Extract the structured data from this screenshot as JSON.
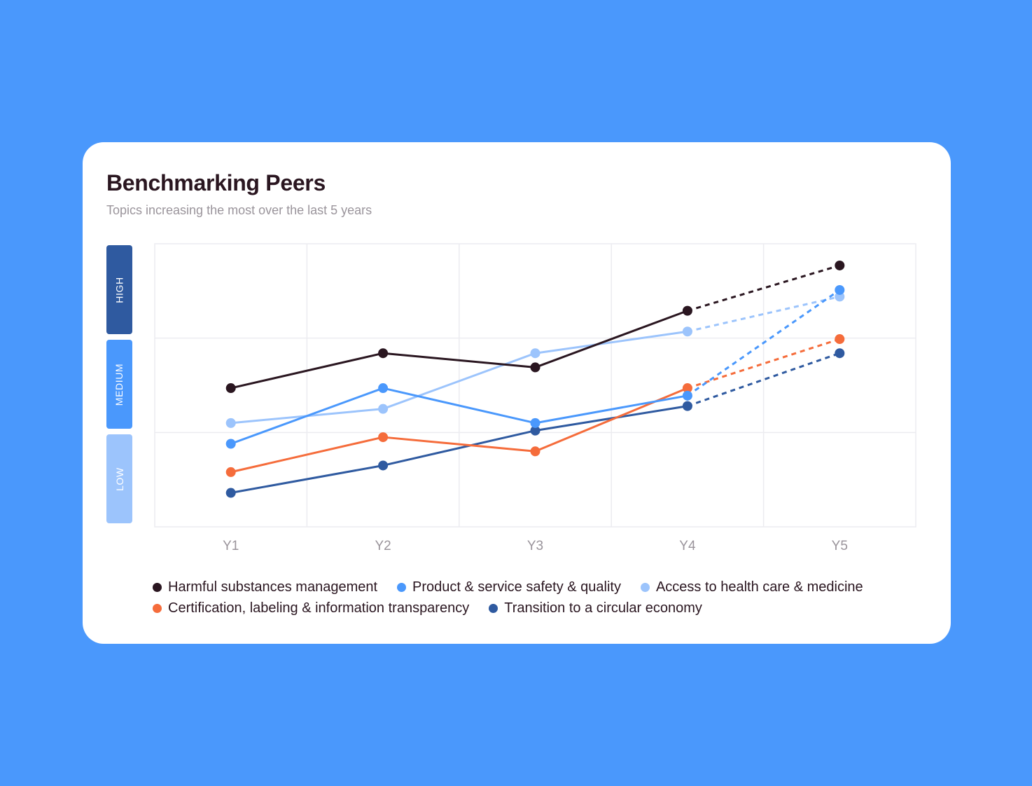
{
  "header": {
    "title": "Benchmarking Peers",
    "subtitle": "Topics increasing the most over the last 5 years"
  },
  "bands": [
    {
      "label": "HIGH",
      "color": "#2f5aa0"
    },
    {
      "label": "MEDIUM",
      "color": "#4a98fc"
    },
    {
      "label": "LOW",
      "color": "#9cc4fc"
    }
  ],
  "chart_data": {
    "type": "line",
    "categories": [
      "Y1",
      "Y2",
      "Y3",
      "Y4",
      "Y5"
    ],
    "ylim": [
      0,
      3
    ],
    "y_levels": [
      "LOW",
      "MEDIUM",
      "HIGH"
    ],
    "grid": true,
    "legend_placement": "bottom",
    "projected_segment": "Y4-Y5 dashed",
    "series": [
      {
        "name": "Harmful substances management",
        "color": "#2a1620",
        "values": [
          1.47,
          1.84,
          1.69,
          2.29,
          2.77
        ]
      },
      {
        "name": "Product & service safety & quality",
        "color": "#4a98fc",
        "values": [
          0.88,
          1.47,
          1.1,
          1.39,
          2.51
        ]
      },
      {
        "name": "Access to health care & medicine",
        "color": "#9cc4fc",
        "values": [
          1.1,
          1.25,
          1.84,
          2.07,
          2.44
        ]
      },
      {
        "name": "Certification, labeling & information transparency",
        "color": "#f56c3b",
        "values": [
          0.58,
          0.95,
          0.8,
          1.47,
          1.99
        ]
      },
      {
        "name": "Transition to a circular economy",
        "color": "#2f5aa0",
        "values": [
          0.36,
          0.65,
          1.02,
          1.28,
          1.84
        ]
      }
    ]
  }
}
